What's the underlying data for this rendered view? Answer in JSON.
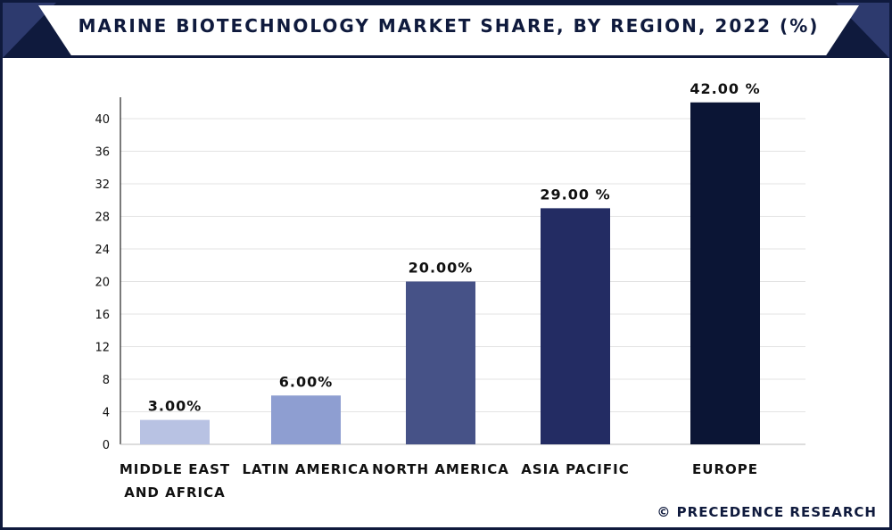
{
  "header": {
    "title": "MARINE BIOTECHNOLOGY MARKET SHARE, BY REGION, 2022 (%)"
  },
  "footer": {
    "credit": "© PRECEDENCE RESEARCH"
  },
  "chart_data": {
    "type": "bar",
    "title": "MARINE BIOTECHNOLOGY MARKET SHARE, BY REGION, 2022 (%)",
    "xlabel": "",
    "ylabel": "",
    "ylim": [
      0,
      40
    ],
    "yticks": [
      "0",
      "4",
      "8",
      "12",
      "16",
      "20",
      "24",
      "28",
      "32",
      "36",
      "40"
    ],
    "grid": true,
    "legend": "none",
    "categories": [
      [
        "MIDDLE EAST",
        "AND AFRICA"
      ],
      [
        "LATIN AMERICA"
      ],
      [
        "NORTH AMERICA"
      ],
      [
        "ASIA PACIFIC"
      ],
      [
        "EUROPE"
      ]
    ],
    "values": [
      3.0,
      6.0,
      20.0,
      29.0,
      42.0
    ],
    "value_labels": [
      "3.00%",
      "6.00%",
      "20.00%",
      "29.00 %",
      "42.00 %"
    ],
    "colors": [
      "#b8c2e3",
      "#8e9ed1",
      "#465287",
      "#232c63",
      "#0b1535"
    ]
  }
}
